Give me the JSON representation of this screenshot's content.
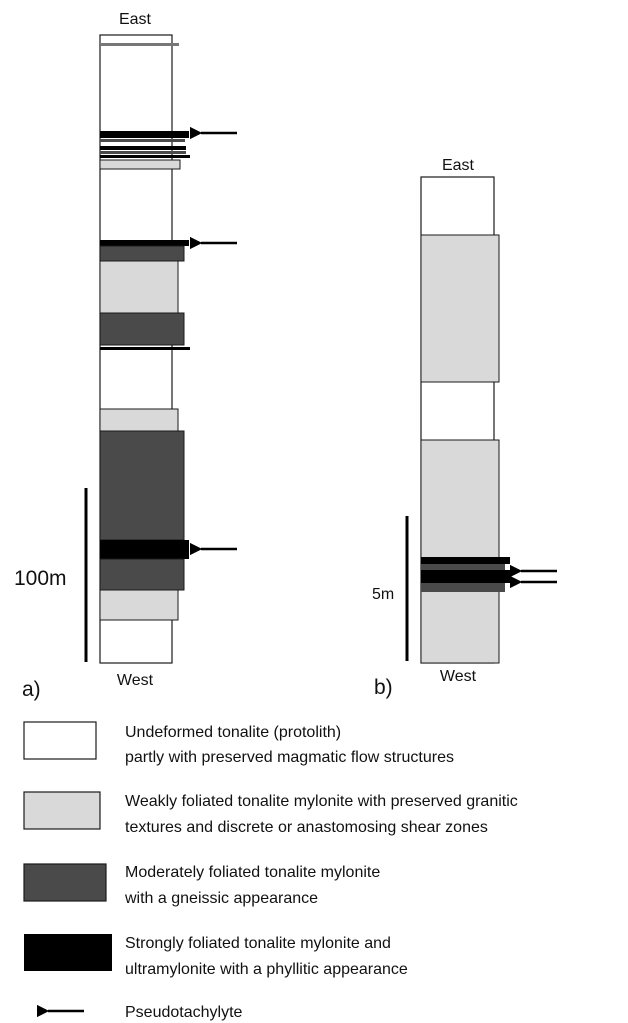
{
  "colors": {
    "undeformed": "#ffffff",
    "weak": "#d9d9d9",
    "moderate": "#4a4a4a",
    "strong": "#000000",
    "outline": "#1a1a1a"
  },
  "column_a": {
    "top_label": "East",
    "bottom_label": "West",
    "panel_label": "a)",
    "scale_label": "100m",
    "pseudotachylyte_count": 3
  },
  "column_b": {
    "top_label": "East",
    "bottom_label": "West",
    "panel_label": "b)",
    "scale_label": "5m",
    "pseudotachylyte_count": 2
  },
  "legend": [
    {
      "key": "undeformed",
      "line1": "Undeformed tonalite (protolith)",
      "line2": "partly with preserved magmatic flow structures"
    },
    {
      "key": "weak",
      "line1": "Weakly foliated tonalite mylonite with preserved granitic",
      "line2": "textures and discrete or anastomosing shear zones"
    },
    {
      "key": "moderate",
      "line1": "Moderately foliated tonalite mylonite",
      "line2": "with a gneissic appearance"
    },
    {
      "key": "strong",
      "line1": "Strongly foliated tonalite mylonite and",
      "line2": "ultramylonite with a phyllitic appearance"
    },
    {
      "key": "pseudotachylyte",
      "line1": "Pseudotachylyte",
      "line2": ""
    }
  ]
}
